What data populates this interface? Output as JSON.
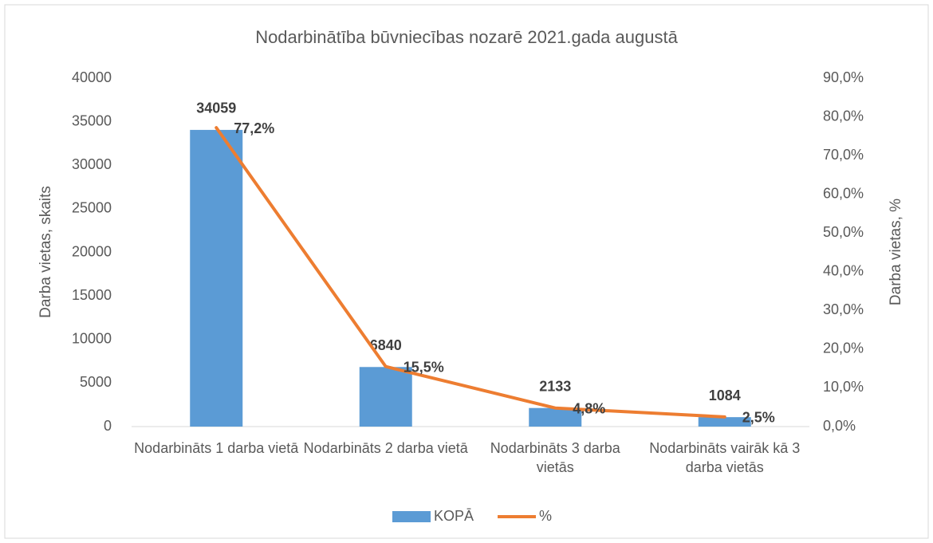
{
  "chart_data": {
    "type": "bar",
    "title": "Nodarbinātība būvniecības nozarē 2021.gada augustā",
    "ylabel": "Darba vietas, skaits",
    "y2label": "Darba vietas, %",
    "categories": [
      "Nodarbināts 1 darba vietā",
      "Nodarbināts 2 darba vietā",
      "Nodarbināts 3 darba vietās",
      "Nodarbināts vairāk kā 3 darba vietās"
    ],
    "series": [
      {
        "name": "KOPĀ",
        "type": "bar",
        "color": "#5b9bd5",
        "values": [
          34059,
          6840,
          2133,
          1084
        ]
      },
      {
        "name": "%",
        "type": "line",
        "axis": "y2",
        "color": "#ed7d31",
        "values": [
          77.2,
          15.5,
          4.8,
          2.5
        ],
        "value_labels": [
          "77,2%",
          "15,5%",
          "4,8%",
          "2,5%"
        ]
      }
    ],
    "ylim": [
      0,
      40000
    ],
    "yticks": [
      0,
      5000,
      10000,
      15000,
      20000,
      25000,
      30000,
      35000,
      40000
    ],
    "y2lim": [
      0,
      90
    ],
    "y2ticks": [
      {
        "value": 0,
        "label": "0,0%"
      },
      {
        "value": 10,
        "label": "10,0%"
      },
      {
        "value": 20,
        "label": "20,0%"
      },
      {
        "value": 30,
        "label": "30,0%"
      },
      {
        "value": 40,
        "label": "40,0%"
      },
      {
        "value": 50,
        "label": "50,0%"
      },
      {
        "value": 60,
        "label": "60,0%"
      },
      {
        "value": 70,
        "label": "70,0%"
      },
      {
        "value": 80,
        "label": "80,0%"
      },
      {
        "value": 90,
        "label": "90,0%"
      }
    ],
    "legend": "bottom",
    "grid": false
  }
}
